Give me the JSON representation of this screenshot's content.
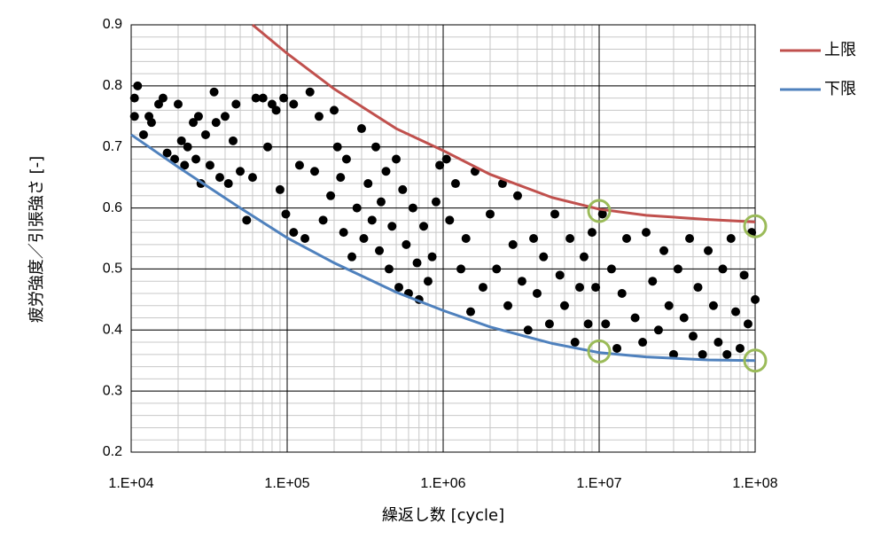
{
  "chart_data": {
    "type": "scatter",
    "xlabel": "繰返し数 [cycle]",
    "ylabel": "疲労強度／引張強さ [-]",
    "xscale": "log",
    "xlim": [
      10000,
      100000000
    ],
    "ylim": [
      0.2,
      0.9
    ],
    "xticks": [
      {
        "value": 10000,
        "label": "1.E+04"
      },
      {
        "value": 100000,
        "label": "1.E+05"
      },
      {
        "value": 1000000,
        "label": "1.E+06"
      },
      {
        "value": 10000000,
        "label": "1.E+07"
      },
      {
        "value": 100000000,
        "label": "1.E+08"
      }
    ],
    "yticks": [
      0.2,
      0.3,
      0.4,
      0.5,
      0.6,
      0.7,
      0.8,
      0.9
    ],
    "grid": true,
    "minor_grid": {
      "x_per_decade": [
        2,
        3,
        4,
        5,
        6,
        7,
        8,
        9
      ],
      "y_step": 0.02
    },
    "legend": "right",
    "series": [
      {
        "name": "上限",
        "color": "#c0504d",
        "x": [
          60000,
          100000,
          200000,
          500000,
          1000000,
          2000000,
          5000000,
          10000000,
          20000000,
          50000000,
          100000000
        ],
        "values": [
          0.9,
          0.853,
          0.795,
          0.73,
          0.694,
          0.655,
          0.617,
          0.598,
          0.588,
          0.581,
          0.577
        ]
      },
      {
        "name": "下限",
        "color": "#4f81bd",
        "x": [
          10000,
          20000,
          50000,
          100000,
          200000,
          500000,
          1000000,
          2000000,
          5000000,
          10000000,
          20000000,
          50000000,
          100000000
        ],
        "values": [
          0.72,
          0.667,
          0.6,
          0.551,
          0.51,
          0.462,
          0.432,
          0.405,
          0.378,
          0.363,
          0.356,
          0.351,
          0.35
        ]
      }
    ],
    "points": {
      "color": "#000000",
      "x": [
        10500,
        10500,
        11000,
        12000,
        13000,
        13500,
        15000,
        16000,
        17000,
        19000,
        20000,
        21000,
        22000,
        23000,
        25000,
        26000,
        27000,
        28000,
        30000,
        32000,
        34000,
        35000,
        37000,
        40000,
        42000,
        45000,
        47000,
        50000,
        55000,
        60000,
        63000,
        70000,
        75000,
        80000,
        85000,
        90000,
        95000,
        98000,
        110000,
        110000,
        120000,
        130000,
        140000,
        150000,
        160000,
        170000,
        190000,
        200000,
        210000,
        220000,
        230000,
        240000,
        260000,
        280000,
        300000,
        310000,
        330000,
        350000,
        370000,
        390000,
        400000,
        430000,
        450000,
        470000,
        500000,
        520000,
        550000,
        580000,
        600000,
        640000,
        680000,
        700000,
        750000,
        800000,
        850000,
        900000,
        950000,
        1050000,
        1100000,
        1200000,
        1300000,
        1400000,
        1500000,
        1600000,
        1800000,
        2000000,
        2200000,
        2400000,
        2600000,
        2800000,
        3000000,
        3200000,
        3500000,
        3800000,
        4000000,
        4400000,
        4800000,
        5200000,
        5600000,
        6000000,
        6500000,
        7000000,
        7500000,
        8000000,
        8500000,
        9000000,
        9500000,
        10500000,
        11000000,
        12000000,
        13000000,
        14000000,
        15000000,
        17000000,
        19000000,
        20000000,
        22000000,
        24000000,
        26000000,
        28000000,
        30000000,
        32000000,
        35000000,
        38000000,
        40000000,
        43000000,
        46000000,
        50000000,
        54000000,
        58000000,
        62000000,
        66000000,
        70000000,
        75000000,
        80000000,
        85000000,
        90000000,
        95000000,
        100000000
      ],
      "values": [
        0.78,
        0.75,
        0.8,
        0.72,
        0.75,
        0.74,
        0.77,
        0.78,
        0.69,
        0.68,
        0.77,
        0.71,
        0.67,
        0.7,
        0.74,
        0.68,
        0.75,
        0.64,
        0.72,
        0.67,
        0.79,
        0.74,
        0.65,
        0.75,
        0.64,
        0.71,
        0.77,
        0.66,
        0.58,
        0.65,
        0.78,
        0.78,
        0.7,
        0.77,
        0.76,
        0.63,
        0.78,
        0.59,
        0.56,
        0.77,
        0.67,
        0.55,
        0.79,
        0.66,
        0.75,
        0.58,
        0.62,
        0.76,
        0.7,
        0.65,
        0.56,
        0.68,
        0.52,
        0.6,
        0.73,
        0.55,
        0.64,
        0.58,
        0.7,
        0.53,
        0.61,
        0.66,
        0.5,
        0.57,
        0.68,
        0.47,
        0.63,
        0.54,
        0.46,
        0.6,
        0.51,
        0.45,
        0.57,
        0.48,
        0.52,
        0.61,
        0.67,
        0.68,
        0.58,
        0.64,
        0.5,
        0.55,
        0.43,
        0.66,
        0.47,
        0.59,
        0.5,
        0.64,
        0.44,
        0.54,
        0.62,
        0.48,
        0.4,
        0.55,
        0.46,
        0.52,
        0.41,
        0.59,
        0.49,
        0.44,
        0.55,
        0.38,
        0.47,
        0.52,
        0.41,
        0.56,
        0.47,
        0.59,
        0.41,
        0.5,
        0.37,
        0.46,
        0.55,
        0.42,
        0.38,
        0.56,
        0.48,
        0.4,
        0.53,
        0.44,
        0.36,
        0.5,
        0.42,
        0.55,
        0.39,
        0.47,
        0.36,
        0.53,
        0.44,
        0.38,
        0.5,
        0.36,
        0.55,
        0.43,
        0.37,
        0.49,
        0.41,
        0.56,
        0.45
      ]
    },
    "highlights": {
      "color": "#9bbb59",
      "x": [
        10000000,
        100000000,
        10000000,
        100000000
      ],
      "values": [
        0.595,
        0.57,
        0.365,
        0.35
      ]
    }
  }
}
